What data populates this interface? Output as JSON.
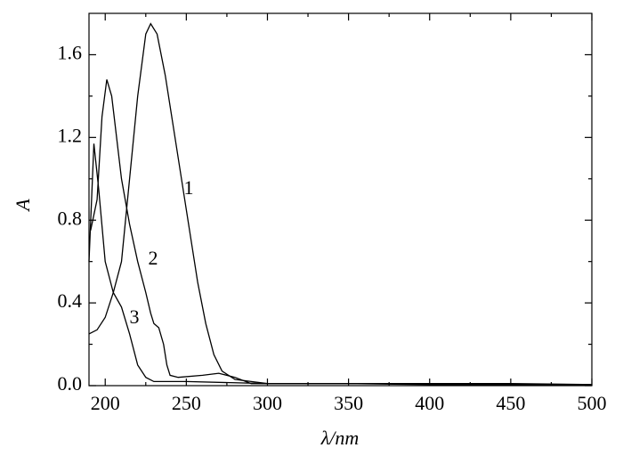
{
  "chart_data": {
    "type": "line",
    "xlabel": "λ/nm",
    "ylabel": "A",
    "xlim": [
      190,
      500
    ],
    "ylim": [
      0,
      1.8
    ],
    "xticks": [
      200,
      250,
      300,
      350,
      400,
      450,
      500
    ],
    "xminorticks": [
      225,
      275,
      325,
      375,
      425,
      475
    ],
    "yticks": [
      {
        "value": 0,
        "label": "0.0"
      },
      0.4,
      0.8,
      1.2,
      1.6
    ],
    "yminorticks": [
      0.2,
      0.6,
      1.0,
      1.4
    ],
    "series": [
      {
        "name": "1",
        "color": "#000000",
        "x": [
          190,
          195,
          200,
          205,
          210,
          215,
          220,
          225,
          228,
          232,
          237,
          242,
          247,
          252,
          257,
          262,
          267,
          272,
          280,
          290,
          300,
          350,
          400,
          450,
          500
        ],
        "values": [
          0.25,
          0.27,
          0.33,
          0.45,
          0.6,
          1.0,
          1.4,
          1.7,
          1.75,
          1.7,
          1.5,
          1.25,
          1.0,
          0.75,
          0.5,
          0.3,
          0.15,
          0.07,
          0.03,
          0.02,
          0.01,
          0.01,
          0.01,
          0.01,
          0.005
        ]
      },
      {
        "name": "2",
        "color": "#000000",
        "x": [
          191,
          195,
          198,
          201,
          204,
          207,
          210,
          215,
          220,
          225,
          228,
          230,
          233,
          236,
          238,
          240,
          245,
          260,
          270,
          280,
          290,
          300,
          350,
          400,
          450,
          500
        ],
        "values": [
          0.75,
          0.9,
          1.3,
          1.48,
          1.4,
          1.2,
          1.0,
          0.78,
          0.6,
          0.45,
          0.35,
          0.3,
          0.28,
          0.2,
          0.1,
          0.05,
          0.04,
          0.05,
          0.06,
          0.04,
          0.01,
          0.01,
          0.01,
          0.01,
          0.005,
          0.005
        ]
      },
      {
        "name": "3",
        "color": "#000000",
        "x": [
          190,
          193,
          196,
          200,
          205,
          210,
          215,
          220,
          225,
          230,
          250,
          300,
          350,
          400,
          450,
          500
        ],
        "values": [
          0.6,
          1.17,
          0.95,
          0.6,
          0.45,
          0.38,
          0.25,
          0.1,
          0.04,
          0.02,
          0.02,
          0.01,
          0.01,
          0.005,
          0.005,
          0.005
        ]
      }
    ]
  }
}
